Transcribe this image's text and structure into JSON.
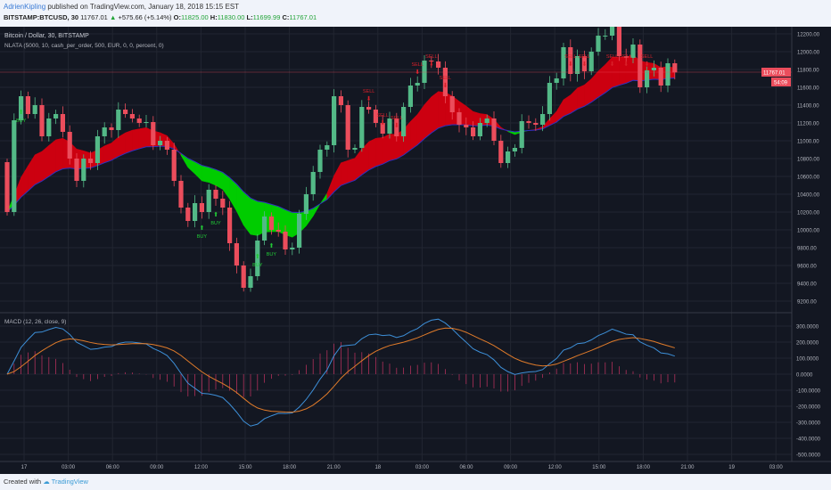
{
  "header": {
    "author": "AdrienKipling",
    "published": "published on TradingView.com, January 18, 2018 15:15 EST",
    "symbol": "BITSTAMP:BTCUSD, 30",
    "last": "11767.01",
    "change": "+575.66 (+5.14%)",
    "open_label": "O:",
    "open": "11825.00",
    "high_label": "H:",
    "high": "11830.00",
    "low_label": "L:",
    "low": "11699.99",
    "close_label": "C:",
    "close": "11767.01"
  },
  "pane_titles": {
    "main": "Bitcoin / Dollar, 30, BITSTAMP",
    "strategy": "NLATA (5000, 10, cash_per_order, 500, EUR, 0, 0, percent, 0)",
    "macd": "MACD (12, 26, close, 9)"
  },
  "price_badge": {
    "price": "11767.01",
    "countdown": "54:09"
  },
  "colors": {
    "up": "#53b987",
    "down": "#eb4d5c",
    "band_bull": "#00cc00",
    "band_bear": "#cc0010",
    "macd": "#3d8fd8",
    "signal": "#e07b2a",
    "bg": "#131722"
  },
  "footer": {
    "created": "Created with",
    "brand": "TradingView"
  },
  "chart_data": [
    {
      "type": "candlestick",
      "title": "Bitcoin / Dollar, 30, BITSTAMP",
      "ylim": [
        9100,
        12300
      ],
      "y_ticks": [
        "12200.00",
        "12000.00",
        "11800.00",
        "11600.00",
        "11400.00",
        "11200.00",
        "11000.00",
        "10800.00",
        "10600.00",
        "10400.00",
        "10200.00",
        "10000.00",
        "9800.00",
        "9600.00",
        "9400.00",
        "9200.00"
      ],
      "x_ticks": [
        "17",
        "03:00",
        "06:00",
        "09:00",
        "12:00",
        "15:00",
        "18:00",
        "21:00",
        "18",
        "03:00",
        "06:00",
        "09:00",
        "12:00",
        "15:00",
        "18:00",
        "21:00",
        "19",
        "03:00"
      ],
      "first_open": 10760,
      "closes": [
        10200,
        11230,
        11500,
        11300,
        11400,
        11050,
        11250,
        11300,
        11100,
        10800,
        10550,
        10800,
        10750,
        11050,
        11150,
        11120,
        11350,
        11300,
        11250,
        11200,
        11210,
        10950,
        11000,
        10900,
        10550,
        10250,
        10100,
        10300,
        10200,
        10450,
        10350,
        10250,
        9850,
        9600,
        9350,
        9480,
        9880,
        10150,
        10000,
        9980,
        9780,
        9800,
        10180,
        10400,
        10650,
        10900,
        10950,
        11500,
        11400,
        10900,
        10920,
        11380,
        11350,
        11200,
        11080,
        11250,
        11050,
        11380,
        11620,
        11650,
        11900,
        11890,
        11820,
        11500,
        11320,
        11180,
        11150,
        11050,
        11200,
        11250,
        11000,
        10750,
        10880,
        10920,
        11220,
        11200,
        11180,
        11300,
        11650,
        11700,
        12050,
        11750,
        11950,
        11780,
        12000,
        12180,
        12180,
        12320,
        11950,
        11930,
        12080,
        11600,
        11790,
        11820,
        11620,
        11870,
        11767
      ],
      "signals": [
        {
          "i": 2,
          "label": "BUY"
        },
        {
          "i": 28,
          "label": "BUY"
        },
        {
          "i": 30,
          "label": "BUY"
        },
        {
          "i": 36,
          "label": "BUY"
        },
        {
          "i": 38,
          "label": "BUY"
        },
        {
          "i": 52,
          "label": "SELL"
        },
        {
          "i": 54,
          "label": "SELL"
        },
        {
          "i": 56,
          "label": "SELL"
        },
        {
          "i": 59,
          "label": "SELL"
        },
        {
          "i": 61,
          "label": "SELL"
        },
        {
          "i": 63,
          "label": "SELL"
        },
        {
          "i": 81,
          "label": "SELL"
        },
        {
          "i": 83,
          "label": "SELL"
        },
        {
          "i": 87,
          "label": "SELL"
        },
        {
          "i": 89,
          "label": "SELL"
        },
        {
          "i": 92,
          "label": "SELL"
        }
      ]
    },
    {
      "type": "line",
      "title": "MACD (12, 26, close, 9)",
      "ylim": [
        -520,
        380
      ],
      "y_ticks": [
        "300.0000",
        "200.0000",
        "100.0000",
        "0.0000",
        "-100.0000",
        "-200.0000",
        "-300.0000",
        "-400.0000",
        "-500.0000"
      ],
      "series": [
        {
          "name": "MACD"
        },
        {
          "name": "Signal"
        },
        {
          "name": "Histogram"
        }
      ]
    }
  ]
}
